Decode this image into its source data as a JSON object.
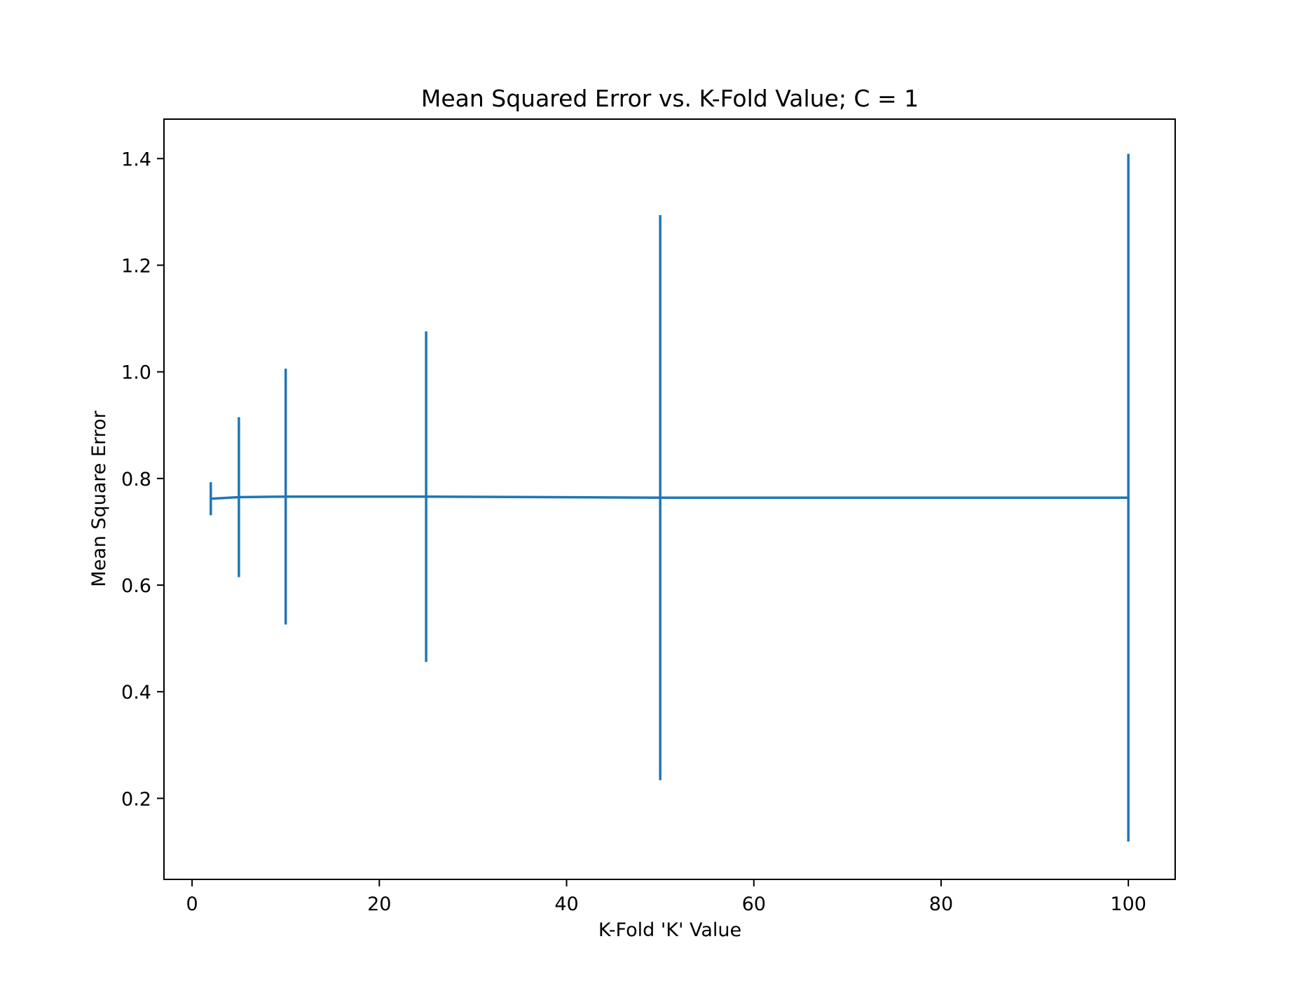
{
  "chart_data": {
    "type": "line",
    "title": "Mean Squared Error vs. K-Fold Value; C = 1",
    "xlabel": "K-Fold 'K' Value",
    "ylabel": "Mean Square Error",
    "xlim": [
      -3,
      105
    ],
    "ylim": [
      0.048,
      1.474
    ],
    "xticks": [
      0,
      20,
      40,
      60,
      80,
      100
    ],
    "xtick_labels": [
      "0",
      "20",
      "40",
      "60",
      "80",
      "100"
    ],
    "yticks": [
      0.2,
      0.4,
      0.6,
      0.8,
      1.0,
      1.2,
      1.4
    ],
    "ytick_labels": [
      "0.2",
      "0.4",
      "0.6",
      "0.8",
      "1.0",
      "1.2",
      "1.4"
    ],
    "grid": false,
    "series": [
      {
        "color": "#1f77b4",
        "x": [
          2,
          5,
          10,
          25,
          50,
          100
        ],
        "y": [
          0.762,
          0.765,
          0.766,
          0.766,
          0.764,
          0.764
        ],
        "yerr": [
          0.031,
          0.15,
          0.24,
          0.31,
          0.53,
          0.645
        ]
      }
    ]
  }
}
